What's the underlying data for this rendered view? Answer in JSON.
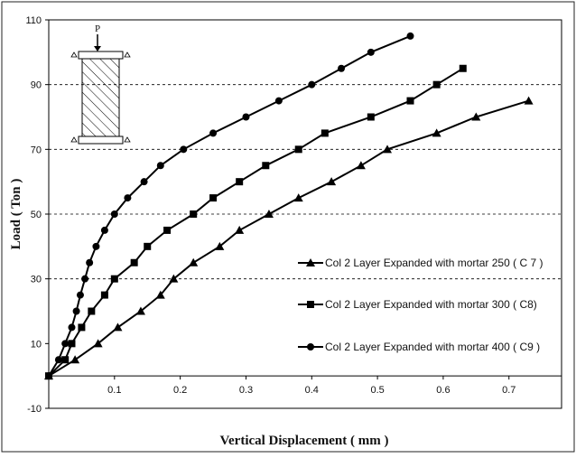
{
  "chart_data": {
    "type": "line",
    "title": "",
    "xlabel": "Vertical Displacement ( mm )",
    "ylabel": "Load ( Ton )",
    "xlim": [
      0,
      0.78
    ],
    "ylim": [
      -10,
      110
    ],
    "x_ticks": [
      "0.1",
      "0.2",
      "0.3",
      "0.4",
      "0.5",
      "0.6",
      "0.7"
    ],
    "y_ticks": [
      "-10",
      "10",
      "30",
      "50",
      "70",
      "90",
      "110"
    ],
    "grid": "horizontal dashed lines at y=30, 50, 70, 90",
    "legend_position": "lower-right, each entry placed next to its series",
    "inset_label": "P",
    "series": [
      {
        "name": "Col 2 Layer Expanded with mortar 250 ( C 7 )",
        "marker": "triangle",
        "color": "#000000",
        "x": [
          0,
          0.04,
          0.075,
          0.105,
          0.14,
          0.17,
          0.19,
          0.22,
          0.26,
          0.29,
          0.335,
          0.38,
          0.43,
          0.475,
          0.515,
          0.59,
          0.65,
          0.73
        ],
        "y": [
          0,
          5,
          10,
          15,
          20,
          25,
          30,
          35,
          40,
          45,
          50,
          55,
          60,
          65,
          70,
          75,
          80,
          85
        ]
      },
      {
        "name": "Col 2 Layer Expanded with mortar 300 ( C8)",
        "marker": "square",
        "color": "#000000",
        "x": [
          0,
          0.025,
          0.035,
          0.05,
          0.065,
          0.085,
          0.1,
          0.13,
          0.15,
          0.18,
          0.22,
          0.25,
          0.29,
          0.33,
          0.38,
          0.42,
          0.49,
          0.55,
          0.59,
          0.63
        ],
        "y": [
          0,
          5,
          10,
          15,
          20,
          25,
          30,
          35,
          40,
          45,
          50,
          55,
          60,
          65,
          70,
          75,
          80,
          85,
          90,
          95
        ]
      },
      {
        "name": "Col 2 Layer Expanded with mortar 400 ( C9 )",
        "marker": "circle",
        "color": "#000000",
        "x": [
          0,
          0.015,
          0.025,
          0.035,
          0.042,
          0.048,
          0.055,
          0.062,
          0.072,
          0.085,
          0.1,
          0.12,
          0.145,
          0.17,
          0.205,
          0.25,
          0.3,
          0.35,
          0.4,
          0.445,
          0.49,
          0.55
        ],
        "y": [
          0,
          5,
          10,
          15,
          20,
          25,
          30,
          35,
          40,
          45,
          50,
          55,
          60,
          65,
          70,
          75,
          80,
          85,
          90,
          95,
          100,
          105
        ]
      }
    ]
  }
}
